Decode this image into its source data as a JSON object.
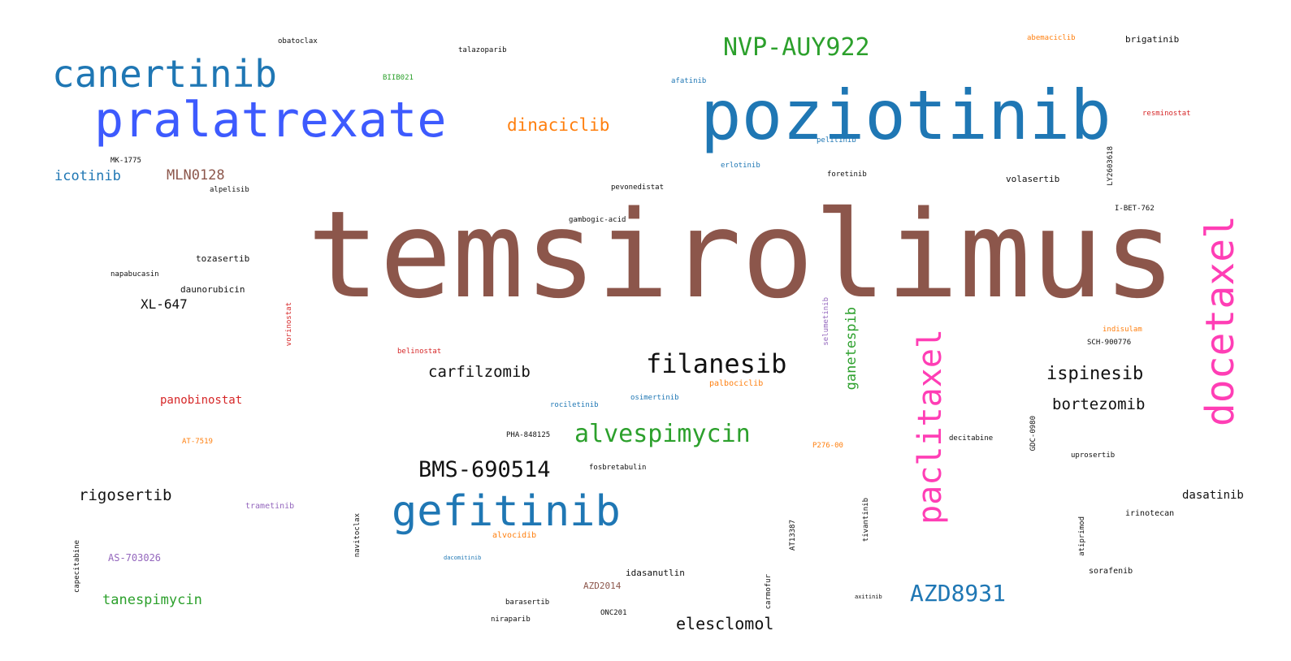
{
  "word_cloud": {
    "words": [
      {
        "text": "temsirolimus",
        "color": "#8c564b"
      },
      {
        "text": "poziotinib",
        "color": "#1f77b4"
      },
      {
        "text": "pralatrexate",
        "color": "#3d5afe"
      },
      {
        "text": "canertinib",
        "color": "#1f77b4"
      },
      {
        "text": "docetaxel",
        "color": "#ff3eb5"
      },
      {
        "text": "paclitaxel",
        "color": "#ff3eb5"
      },
      {
        "text": "gefitinib",
        "color": "#1f77b4"
      },
      {
        "text": "NVP-AUY922",
        "color": "#2ca02c"
      },
      {
        "text": "filanesib",
        "color": "#111111"
      },
      {
        "text": "alvespimycin",
        "color": "#2ca02c"
      },
      {
        "text": "BMS-690514",
        "color": "#111111"
      },
      {
        "text": "AZD8931",
        "color": "#1f77b4"
      },
      {
        "text": "dinaciclib",
        "color": "#ff7f0e"
      },
      {
        "text": "ispinesib",
        "color": "#111111"
      },
      {
        "text": "carfilzomib",
        "color": "#111111"
      },
      {
        "text": "elesclomol",
        "color": "#111111"
      },
      {
        "text": "bortezomib",
        "color": "#111111"
      },
      {
        "text": "rigosertib",
        "color": "#111111"
      },
      {
        "text": "tanespimycin",
        "color": "#2ca02c"
      },
      {
        "text": "icotinib",
        "color": "#1f77b4"
      },
      {
        "text": "MLN0128",
        "color": "#8c564b"
      },
      {
        "text": "ganetespib",
        "color": "#2ca02c"
      },
      {
        "text": "XL-647",
        "color": "#111111"
      },
      {
        "text": "panobinostat",
        "color": "#d62728"
      },
      {
        "text": "AS-703026",
        "color": "#9467bd"
      },
      {
        "text": "dasatinib",
        "color": "#111111"
      },
      {
        "text": "obatoclax",
        "color": "#111111"
      },
      {
        "text": "talazoparib",
        "color": "#111111"
      },
      {
        "text": "BIIB021",
        "color": "#2ca02c"
      },
      {
        "text": "abemaciclib",
        "color": "#ff7f0e"
      },
      {
        "text": "brigatinib",
        "color": "#111111"
      },
      {
        "text": "afatinib",
        "color": "#1f77b4"
      },
      {
        "text": "resminostat",
        "color": "#d62728"
      },
      {
        "text": "pelitinib",
        "color": "#1f77b4"
      },
      {
        "text": "MK-1775",
        "color": "#111111"
      },
      {
        "text": "alpelisib",
        "color": "#111111"
      },
      {
        "text": "erlotinib",
        "color": "#1f77b4"
      },
      {
        "text": "foretinib",
        "color": "#111111"
      },
      {
        "text": "volasertib",
        "color": "#111111"
      },
      {
        "text": "LY2603618",
        "color": "#111111"
      },
      {
        "text": "pevonedistat",
        "color": "#111111"
      },
      {
        "text": "I-BET-762",
        "color": "#111111"
      },
      {
        "text": "gambogic-acid",
        "color": "#111111"
      },
      {
        "text": "tozasertib",
        "color": "#111111"
      },
      {
        "text": "napabucasin",
        "color": "#111111"
      },
      {
        "text": "daunorubicin",
        "color": "#111111"
      },
      {
        "text": "vorinostat",
        "color": "#d62728"
      },
      {
        "text": "selumetinib",
        "color": "#9467bd"
      },
      {
        "text": "indisulam",
        "color": "#ff7f0e"
      },
      {
        "text": "SCH-900776",
        "color": "#111111"
      },
      {
        "text": "belinostat",
        "color": "#d62728"
      },
      {
        "text": "palbociclib",
        "color": "#ff7f0e"
      },
      {
        "text": "osimertinib",
        "color": "#1f77b4"
      },
      {
        "text": "rociletinib",
        "color": "#1f77b4"
      },
      {
        "text": "AT-7519",
        "color": "#ff7f0e"
      },
      {
        "text": "PHA-848125",
        "color": "#111111"
      },
      {
        "text": "P276-00",
        "color": "#ff7f0e"
      },
      {
        "text": "decitabine",
        "color": "#111111"
      },
      {
        "text": "GDC-0980",
        "color": "#111111"
      },
      {
        "text": "uprosertib",
        "color": "#111111"
      },
      {
        "text": "fosbretabulin",
        "color": "#111111"
      },
      {
        "text": "trametinib",
        "color": "#9467bd"
      },
      {
        "text": "irinotecan",
        "color": "#111111"
      },
      {
        "text": "alvocidib",
        "color": "#ff7f0e"
      },
      {
        "text": "navitoclax",
        "color": "#111111"
      },
      {
        "text": "tivantinib",
        "color": "#111111"
      },
      {
        "text": "AT13387",
        "color": "#111111"
      },
      {
        "text": "atiprimod",
        "color": "#111111"
      },
      {
        "text": "capecitabine",
        "color": "#111111"
      },
      {
        "text": "dacomitinib",
        "color": "#1f77b4"
      },
      {
        "text": "idasanutlin",
        "color": "#111111"
      },
      {
        "text": "sorafenib",
        "color": "#111111"
      },
      {
        "text": "AZD2014",
        "color": "#8c564b"
      },
      {
        "text": "carmofur",
        "color": "#111111"
      },
      {
        "text": "axitinib",
        "color": "#111111"
      },
      {
        "text": "barasertib",
        "color": "#111111"
      },
      {
        "text": "ONC201",
        "color": "#111111"
      },
      {
        "text": "niraparib",
        "color": "#111111"
      }
    ]
  }
}
